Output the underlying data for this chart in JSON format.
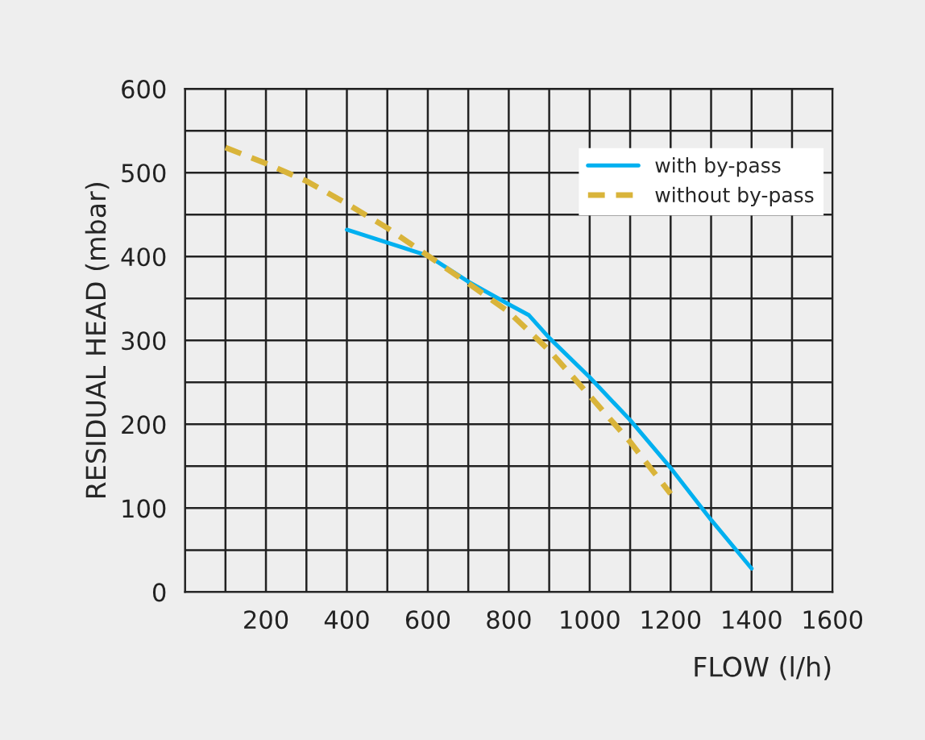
{
  "chart_data": {
    "type": "line",
    "xlabel": "FLOW (l/h)",
    "ylabel": "RESIDUAL HEAD (mbar)",
    "xlim": [
      0,
      1600
    ],
    "ylim": [
      0,
      600
    ],
    "xticks": [
      {
        "value": 0,
        "label": null
      },
      200,
      400,
      600,
      800,
      1000,
      1200,
      1400,
      1600
    ],
    "yticks": [
      0,
      100,
      200,
      300,
      400,
      500,
      600
    ],
    "grid": true,
    "legend": "top right",
    "marker": "none",
    "series": [
      {
        "name": "with by-pass",
        "color": "#00b0f0",
        "line_style": "solid",
        "x": [
          400,
          600,
          700,
          800,
          850,
          900,
          1000,
          1100,
          1200,
          1300,
          1400
        ],
        "values": [
          432,
          401,
          370,
          343,
          330,
          303,
          256,
          205,
          148,
          86,
          28
        ]
      },
      {
        "name": "without by-pass",
        "color": "#d9b43a",
        "line_style": "dashed",
        "x": [
          100,
          200,
          300,
          400,
          500,
          600,
          700,
          800,
          900,
          1000,
          1100,
          1200
        ],
        "values": [
          530,
          511,
          490,
          463,
          434,
          401,
          368,
          334,
          288,
          234,
          179,
          117
        ]
      }
    ]
  }
}
